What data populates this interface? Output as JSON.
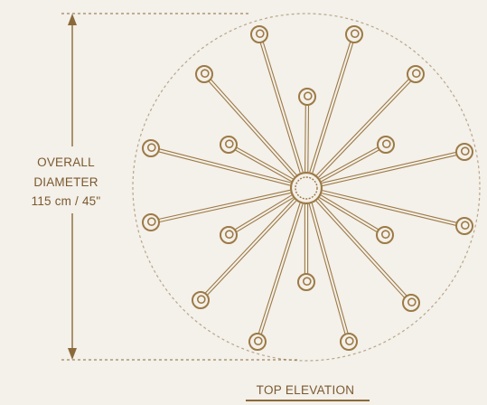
{
  "dimension": {
    "line1": "OVERALL",
    "line2": "DIAMETER",
    "line3": "115 cm / 45\""
  },
  "view_caption": "TOP ELEVATION",
  "colors": {
    "background": "#f4f0ea",
    "line": "#9c7a45",
    "text": "#7a5a2e",
    "dashed_circle": "#b7a78a"
  },
  "fixture": {
    "arm_count": 18
  }
}
